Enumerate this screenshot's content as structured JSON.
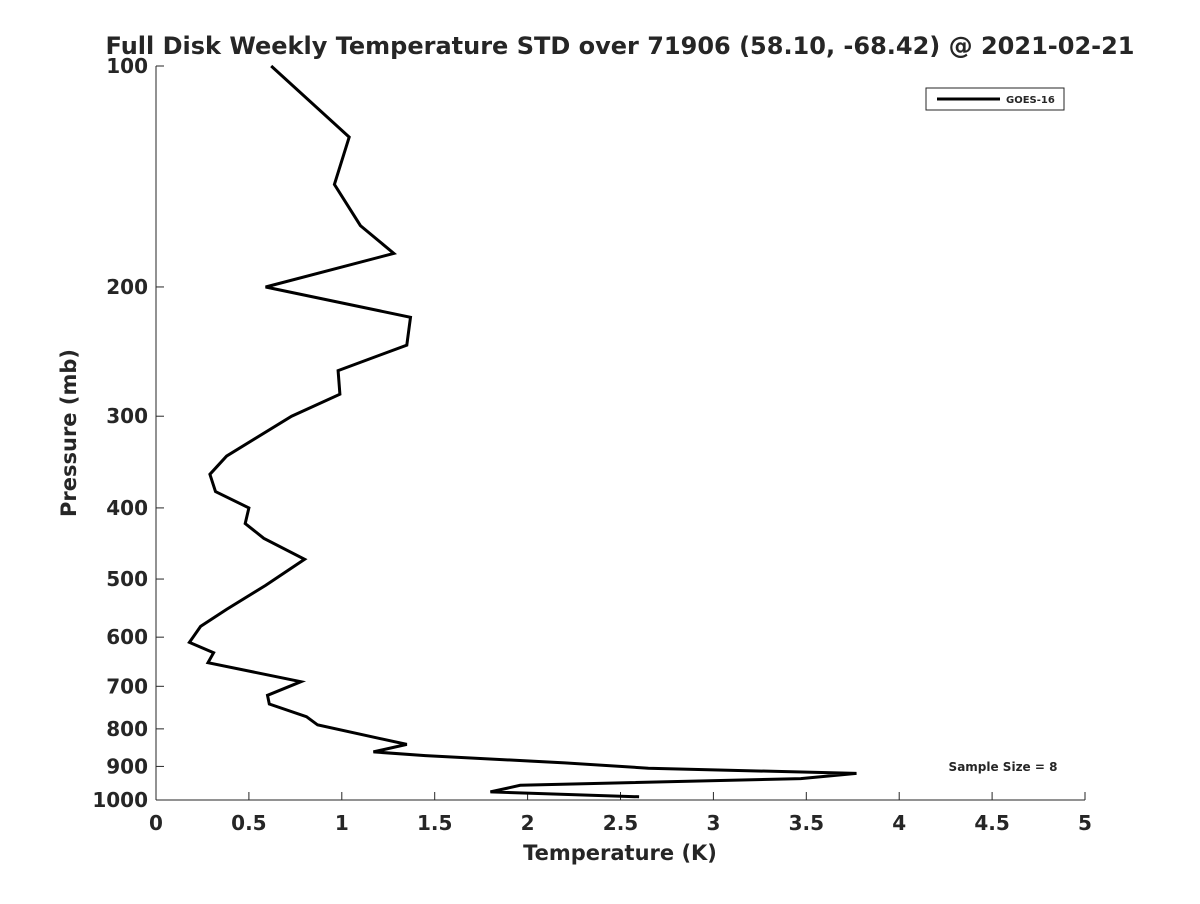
{
  "chart_data": {
    "type": "line",
    "title": "Full Disk Weekly Temperature STD over 71906 (58.10, -68.42) @ 2021-02-21",
    "xlabel": "Temperature (K)",
    "ylabel": "Pressure (mb)",
    "xlim": [
      0,
      5
    ],
    "ylim": [
      1000,
      100
    ],
    "yscale": "log",
    "y_reversed": true,
    "xticks": [
      0,
      0.5,
      1,
      1.5,
      2,
      2.5,
      3,
      3.5,
      4,
      4.5,
      5
    ],
    "xtick_labels": [
      "0",
      "0.5",
      "1",
      "1.5",
      "2",
      "2.5",
      "3",
      "3.5",
      "4",
      "4.5",
      "5"
    ],
    "yticks": [
      100,
      200,
      300,
      400,
      500,
      600,
      700,
      800,
      900,
      1000
    ],
    "ytick_labels": [
      "100",
      "200",
      "300",
      "400",
      "500",
      "600",
      "700",
      "800",
      "900",
      "1000"
    ],
    "grid": false,
    "legend": {
      "placement": "top-right",
      "entries": [
        "GOES-16"
      ]
    },
    "annotation": "Sample Size = 8",
    "series": [
      {
        "name": "GOES-16",
        "color": "#000000",
        "x": [
          0.62,
          1.04,
          0.96,
          1.1,
          1.28,
          0.59,
          1.37,
          1.35,
          0.98,
          0.99,
          0.73,
          0.38,
          0.29,
          0.32,
          0.5,
          0.48,
          0.58,
          0.8,
          0.59,
          0.38,
          0.24,
          0.18,
          0.31,
          0.28,
          0.78,
          0.6,
          0.61,
          0.81,
          0.87,
          1.35,
          1.17,
          1.45,
          2.2,
          2.65,
          3.77,
          3.47,
          1.96,
          1.8,
          2.6
        ],
        "y": [
          100,
          125,
          145,
          165,
          180,
          200,
          220,
          240,
          260,
          280,
          300,
          340,
          360,
          380,
          400,
          420,
          440,
          470,
          510,
          550,
          580,
          610,
          630,
          650,
          690,
          720,
          740,
          770,
          790,
          840,
          860,
          870,
          890,
          905,
          920,
          935,
          955,
          975,
          990
        ]
      }
    ]
  }
}
